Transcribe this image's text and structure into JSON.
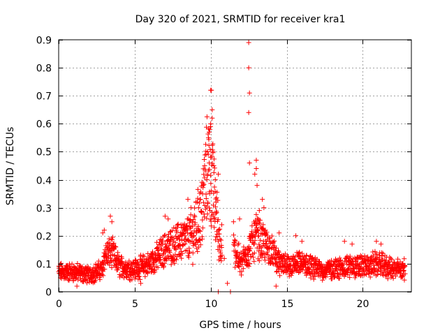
{
  "chart_data": {
    "type": "scatter",
    "title": "Day 320 of 2021, SRMTID for receiver kra1",
    "xlabel": "GPS time / hours",
    "ylabel": "SRMTID / TECUs",
    "xlim": [
      0,
      23.2
    ],
    "ylim": [
      0,
      0.9
    ],
    "xticks": [
      "0",
      "5",
      "10",
      "15",
      "20"
    ],
    "yticks": [
      "0",
      "0.1",
      "0.2",
      "0.3",
      "0.4",
      "0.5",
      "0.6",
      "0.7",
      "0.8",
      "0.9"
    ],
    "grid": true,
    "marker": "plus",
    "color": "#ff0000",
    "series": [
      {
        "name": "SRMTID",
        "base_profile": [
          [
            0.0,
            0.07
          ],
          [
            1.0,
            0.07
          ],
          [
            2.0,
            0.06
          ],
          [
            2.9,
            0.08
          ],
          [
            3.0,
            0.13
          ],
          [
            3.5,
            0.14
          ],
          [
            4.0,
            0.09
          ],
          [
            5.0,
            0.08
          ],
          [
            6.0,
            0.1
          ],
          [
            7.0,
            0.15
          ],
          [
            8.0,
            0.18
          ],
          [
            8.8,
            0.2
          ],
          [
            9.4,
            0.28
          ],
          [
            9.8,
            0.45
          ],
          [
            10.0,
            0.42
          ],
          [
            10.3,
            0.3
          ],
          [
            10.6,
            0.18
          ],
          [
            11.2,
            0.15
          ],
          [
            11.6,
            0.15
          ],
          [
            12.0,
            0.1
          ],
          [
            12.5,
            0.15
          ],
          [
            13.0,
            0.2
          ],
          [
            13.5,
            0.17
          ],
          [
            14.0,
            0.15
          ],
          [
            14.5,
            0.1
          ],
          [
            15.0,
            0.09
          ],
          [
            16.0,
            0.1
          ],
          [
            17.0,
            0.08
          ],
          [
            18.0,
            0.08
          ],
          [
            19.0,
            0.09
          ],
          [
            20.0,
            0.09
          ],
          [
            21.0,
            0.1
          ],
          [
            22.0,
            0.08
          ],
          [
            22.8,
            0.08
          ]
        ],
        "points": [
          [
            9.7,
            0.49
          ],
          [
            9.8,
            0.5
          ],
          [
            9.85,
            0.55
          ],
          [
            9.9,
            0.57
          ],
          [
            9.95,
            0.58
          ],
          [
            10.0,
            0.6
          ],
          [
            10.0,
            0.72
          ],
          [
            10.05,
            0.72
          ],
          [
            10.1,
            0.65
          ],
          [
            10.1,
            0.62
          ],
          [
            9.6,
            0.45
          ],
          [
            9.75,
            0.4
          ],
          [
            10.15,
            0.5
          ],
          [
            10.2,
            0.45
          ],
          [
            10.3,
            0.4
          ],
          [
            10.35,
            0.32
          ],
          [
            10.5,
            0.42
          ],
          [
            9.5,
            0.38
          ],
          [
            9.9,
            0.46
          ],
          [
            10.0,
            0.48
          ],
          [
            12.5,
            0.89
          ],
          [
            12.5,
            0.8
          ],
          [
            12.55,
            0.71
          ],
          [
            12.5,
            0.64
          ],
          [
            12.55,
            0.46
          ],
          [
            13.0,
            0.47
          ],
          [
            13.0,
            0.44
          ],
          [
            12.9,
            0.42
          ],
          [
            13.05,
            0.38
          ],
          [
            13.4,
            0.33
          ],
          [
            13.5,
            0.3
          ],
          [
            13.2,
            0.29
          ],
          [
            13.0,
            0.25
          ],
          [
            13.1,
            0.22
          ],
          [
            13.6,
            0.22
          ],
          [
            14.5,
            0.21
          ],
          [
            15.6,
            0.2
          ],
          [
            16.0,
            0.18
          ],
          [
            18.8,
            0.18
          ],
          [
            19.3,
            0.17
          ],
          [
            20.9,
            0.18
          ],
          [
            21.2,
            0.17
          ],
          [
            3.4,
            0.27
          ],
          [
            3.5,
            0.25
          ],
          [
            7.0,
            0.27
          ],
          [
            7.2,
            0.26
          ],
          [
            8.5,
            0.33
          ],
          [
            8.7,
            0.3
          ],
          [
            9.3,
            0.33
          ],
          [
            9.2,
            0.3
          ],
          [
            11.9,
            0.26
          ],
          [
            11.1,
            0.03
          ],
          [
            11.3,
            0.0
          ],
          [
            10.5,
            0.0
          ],
          [
            1.2,
            0.02
          ],
          [
            5.4,
            0.03
          ],
          [
            14.3,
            0.02
          ],
          [
            2.9,
            0.21
          ],
          [
            3.0,
            0.22
          ],
          [
            11.5,
            0.25
          ]
        ]
      }
    ]
  }
}
